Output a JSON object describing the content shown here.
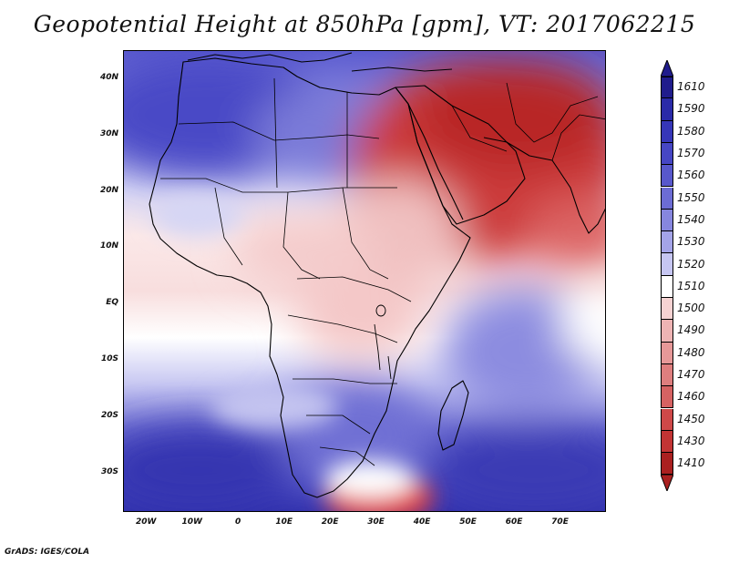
{
  "title": "Geopotential Height at 850hPa [gpm], VT: 2017062215",
  "credit": "GrADS: IGES/COLA",
  "map": {
    "variable": "Geopotential Height",
    "level": "850hPa",
    "units": "gpm",
    "valid_time": "2017062215",
    "lon_range": [
      -25,
      80
    ],
    "lat_range": [
      -37,
      45
    ],
    "lat_labels": [
      {
        "lat": 40,
        "text": "40N"
      },
      {
        "lat": 30,
        "text": "30N"
      },
      {
        "lat": 20,
        "text": "20N"
      },
      {
        "lat": 10,
        "text": "10N"
      },
      {
        "lat": 0,
        "text": "EQ"
      },
      {
        "lat": -10,
        "text": "10S"
      },
      {
        "lat": -20,
        "text": "20S"
      },
      {
        "lat": -30,
        "text": "30S"
      }
    ],
    "lon_labels": [
      {
        "lon": -20,
        "text": "20W"
      },
      {
        "lon": -10,
        "text": "10W"
      },
      {
        "lon": 0,
        "text": "0"
      },
      {
        "lon": 10,
        "text": "10E"
      },
      {
        "lon": 20,
        "text": "20E"
      },
      {
        "lon": 30,
        "text": "30E"
      },
      {
        "lon": 40,
        "text": "40E"
      },
      {
        "lon": 50,
        "text": "50E"
      },
      {
        "lon": 60,
        "text": "60E"
      },
      {
        "lon": 70,
        "text": "70E"
      }
    ],
    "regions": [
      {
        "name": "north-africa-med-low",
        "fill": "#5656cc"
      },
      {
        "name": "southern-ocean-low",
        "fill": "#3838b2"
      },
      {
        "name": "arabia-iran-heat-low",
        "fill": "#c02a2a"
      },
      {
        "name": "sahel-thermal-low",
        "fill": "#f2c6c6"
      },
      {
        "name": "indian-ocean-high",
        "fill": "#8c8ce0"
      },
      {
        "name": "mozambique-channel-low",
        "fill": "#e24848"
      }
    ]
  },
  "colorbar": {
    "levels": [
      {
        "label": "1610",
        "color": "#201c8c"
      },
      {
        "label": "1590",
        "color": "#2a2aa8"
      },
      {
        "label": "1580",
        "color": "#3636b8"
      },
      {
        "label": "1570",
        "color": "#4646c4"
      },
      {
        "label": "1560",
        "color": "#5858cc"
      },
      {
        "label": "1550",
        "color": "#6c6cd4"
      },
      {
        "label": "1540",
        "color": "#8686de"
      },
      {
        "label": "1530",
        "color": "#a4a4e8"
      },
      {
        "label": "1520",
        "color": "#c6c6f2"
      },
      {
        "label": "1510",
        "color": "#ffffff"
      },
      {
        "label": "1500",
        "color": "#f6d2d2"
      },
      {
        "label": "1490",
        "color": "#eeb4b4"
      },
      {
        "label": "1480",
        "color": "#e69898"
      },
      {
        "label": "1470",
        "color": "#de7e7e"
      },
      {
        "label": "1460",
        "color": "#d66262"
      },
      {
        "label": "1450",
        "color": "#ce4848"
      },
      {
        "label": "1430",
        "color": "#c23434"
      },
      {
        "label": "1410",
        "color": "#aa2020"
      }
    ]
  }
}
